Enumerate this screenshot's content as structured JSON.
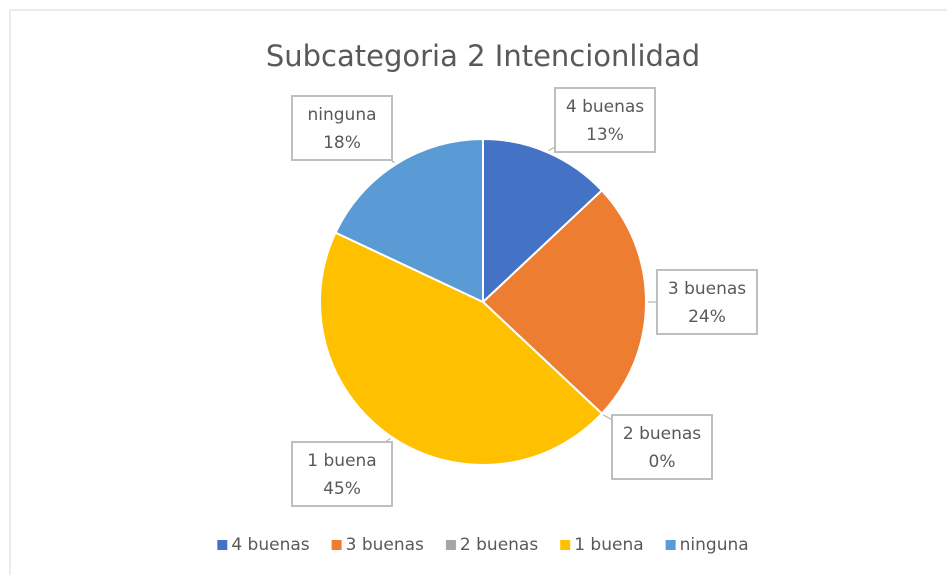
{
  "chart_data": {
    "type": "pie",
    "title": "Subcategoria 2 Intencionlidad",
    "categories": [
      "4 buenas",
      "3 buenas",
      "2 buenas",
      "1 buena",
      "ninguna"
    ],
    "values": [
      13,
      24,
      0,
      45,
      18
    ],
    "value_labels": [
      "13%",
      "24%",
      "0%",
      "45%",
      "18%"
    ],
    "colors": [
      "#4472c4",
      "#ed7d31",
      "#a5a5a5",
      "#ffc000",
      "#5b9bd5"
    ],
    "legend": "bottom"
  }
}
